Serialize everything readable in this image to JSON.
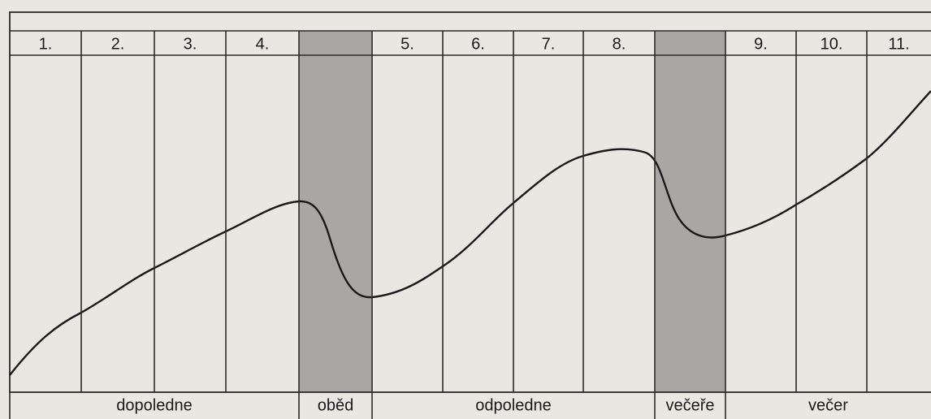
{
  "columns": [
    "1.",
    "2.",
    "3.",
    "4.",
    "5.",
    "6.",
    "7.",
    "8.",
    "9.",
    "10.",
    "11."
  ],
  "sections": [
    "dopoledne",
    "oběd",
    "odpoledne",
    "večeře",
    "večer"
  ]
}
